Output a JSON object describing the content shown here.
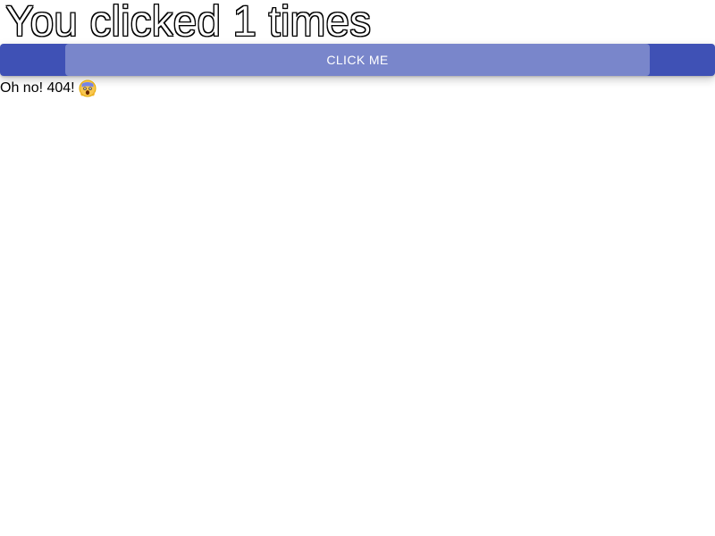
{
  "header": {
    "title": "You clicked 1 times"
  },
  "button": {
    "label": "Click me",
    "color": "#3f51b5",
    "ripple_color": "#7986cb"
  },
  "status": {
    "message": "Oh no! 404!",
    "icon": "face-screaming-in-fear-icon"
  }
}
